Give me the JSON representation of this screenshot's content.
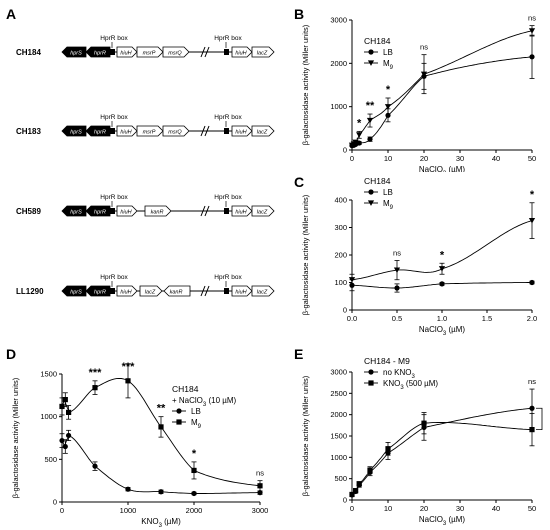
{
  "figure": {
    "panel_letters": [
      "A",
      "B",
      "C",
      "D",
      "E"
    ],
    "constructs": [
      {
        "strain": "CH184",
        "box_labels": [
          "HprR box",
          "HprR box"
        ],
        "genes": [
          "hprS",
          "hprR",
          "hiuH",
          "msrP",
          "msrQ",
          "hiuH",
          "lacZ"
        ]
      },
      {
        "strain": "CH183",
        "box_labels": [
          "HprR box",
          "HprR box"
        ],
        "genes": [
          "hprS",
          "hprR",
          "hiuH",
          "msrP",
          "msrQ",
          "hiuH",
          "lacZ"
        ]
      },
      {
        "strain": "CH589",
        "box_labels": [
          "HprR box",
          "HprR box"
        ],
        "genes": [
          "hprS",
          "hprR",
          "hiuH",
          "kanR",
          "hiuH",
          "lacZ"
        ]
      },
      {
        "strain": "LL1290",
        "box_labels": [
          "HprR box",
          "HprR box"
        ],
        "genes": [
          "hprS",
          "hprR",
          "hiuH",
          "lacZ",
          "kanR",
          "hiuH",
          "lacZ"
        ]
      }
    ]
  },
  "chart_data": [
    {
      "panel": "B",
      "type": "line",
      "title": "CH184",
      "xlabel": "NaClO3 (µM)",
      "ylabel": "β-galactosidase activity (Miller units)",
      "xlim": [
        0,
        50
      ],
      "ylim": [
        0,
        3000
      ],
      "xticks": [
        "0",
        "10",
        "20",
        "30",
        "40",
        "50"
      ],
      "yticks": [
        "0",
        "1000",
        "2000",
        "3000"
      ],
      "legend_position": "top-left",
      "series": [
        {
          "name": "LB",
          "marker": "circle",
          "x": [
            0,
            0.5,
            1,
            2,
            5,
            10,
            20,
            50
          ],
          "y": [
            100,
            110,
            130,
            160,
            250,
            800,
            1700,
            2150
          ],
          "err": [
            20,
            20,
            20,
            30,
            50,
            150,
            300,
            500
          ]
        },
        {
          "name": "M9",
          "marker": "triangle",
          "x": [
            0,
            0.5,
            1,
            2,
            5,
            10,
            20,
            50
          ],
          "y": [
            110,
            140,
            180,
            350,
            680,
            1000,
            1750,
            2750
          ],
          "err": [
            20,
            30,
            30,
            80,
            150,
            200,
            450,
            120
          ]
        }
      ],
      "annotations": [
        {
          "x": 2,
          "text": "*"
        },
        {
          "x": 5,
          "text": "**"
        },
        {
          "x": 10,
          "text": "*"
        },
        {
          "x": 20,
          "text": "ns"
        },
        {
          "x": 50,
          "text": "ns"
        }
      ]
    },
    {
      "panel": "C",
      "type": "line",
      "title": "CH184",
      "xlabel": "NaClO3 (µM)",
      "ylabel": "β-galactosidase activity (Miller units)",
      "xlim": [
        0,
        2
      ],
      "ylim": [
        0,
        400
      ],
      "xticks": [
        "0.0",
        "0.5",
        "1.0",
        "1.5",
        "2.0"
      ],
      "yticks": [
        "0",
        "100",
        "200",
        "300",
        "400"
      ],
      "legend_position": "top-left",
      "series": [
        {
          "name": "LB",
          "marker": "circle",
          "x": [
            0,
            0.5,
            1,
            2
          ],
          "y": [
            90,
            80,
            95,
            100
          ],
          "err": [
            20,
            15,
            5,
            5
          ]
        },
        {
          "name": "M9",
          "marker": "triangle",
          "x": [
            0,
            0.5,
            1,
            2
          ],
          "y": [
            110,
            145,
            150,
            325
          ],
          "err": [
            20,
            35,
            20,
            65
          ]
        }
      ],
      "annotations": [
        {
          "x": 0.5,
          "text": "ns"
        },
        {
          "x": 1,
          "text": "*"
        },
        {
          "x": 2,
          "text": "*"
        }
      ]
    },
    {
      "panel": "D",
      "type": "line",
      "title": "CH184",
      "subtitle": "+ NaClO3 (10 µM)",
      "xlabel": "KNO3 (µM)",
      "ylabel": "β-galactosidase activity (Miller units)",
      "xlim": [
        0,
        3000
      ],
      "ylim": [
        0,
        1500
      ],
      "xticks": [
        "0",
        "1000",
        "2000",
        "3000"
      ],
      "yticks": [
        "0",
        "500",
        "1000",
        "1500"
      ],
      "legend_position": "right",
      "series": [
        {
          "name": "LB",
          "marker": "circle",
          "x": [
            0,
            50,
            100,
            500,
            1000,
            1500,
            2000,
            3000
          ],
          "y": [
            720,
            650,
            780,
            420,
            150,
            120,
            100,
            110
          ],
          "err": [
            80,
            80,
            60,
            50,
            20,
            20,
            15,
            20
          ]
        },
        {
          "name": "M9",
          "marker": "square",
          "x": [
            0,
            50,
            100,
            500,
            1000,
            1500,
            2000,
            3000
          ],
          "y": [
            1120,
            1200,
            1050,
            1340,
            1420,
            880,
            370,
            190
          ],
          "err": [
            100,
            80,
            80,
            80,
            200,
            120,
            100,
            60
          ]
        }
      ],
      "annotations": [
        {
          "x": 500,
          "text": "***"
        },
        {
          "x": 1000,
          "text": "***"
        },
        {
          "x": 1500,
          "text": "**"
        },
        {
          "x": 2000,
          "text": "*"
        },
        {
          "x": 3000,
          "text": "ns"
        }
      ]
    },
    {
      "panel": "E",
      "type": "line",
      "title": "CH184 - M9",
      "xlabel": "NaClO3 (µM)",
      "ylabel": "β-galactosidase activity (Miller units)",
      "xlim": [
        0,
        50
      ],
      "ylim": [
        0,
        3000
      ],
      "xticks": [
        "0",
        "10",
        "20",
        "30",
        "40",
        "50"
      ],
      "yticks": [
        "0",
        "500",
        "1000",
        "1500",
        "2000",
        "2500",
        "3000"
      ],
      "legend_position": "top-left",
      "series": [
        {
          "name": "no KNO3",
          "marker": "circle",
          "x": [
            0,
            1,
            2,
            5,
            10,
            20,
            50
          ],
          "y": [
            120,
            200,
            350,
            650,
            1100,
            1700,
            2150
          ],
          "err": [
            30,
            40,
            50,
            80,
            150,
            300,
            450
          ]
        },
        {
          "name": "KNO3 (500 µM)",
          "marker": "square",
          "x": [
            0,
            1,
            2,
            5,
            10,
            20,
            50
          ],
          "y": [
            130,
            220,
            380,
            700,
            1200,
            1800,
            1650
          ],
          "err": [
            30,
            40,
            50,
            80,
            150,
            250,
            380
          ]
        }
      ],
      "annotations": [
        {
          "x": 50,
          "text": "ns"
        }
      ]
    }
  ]
}
